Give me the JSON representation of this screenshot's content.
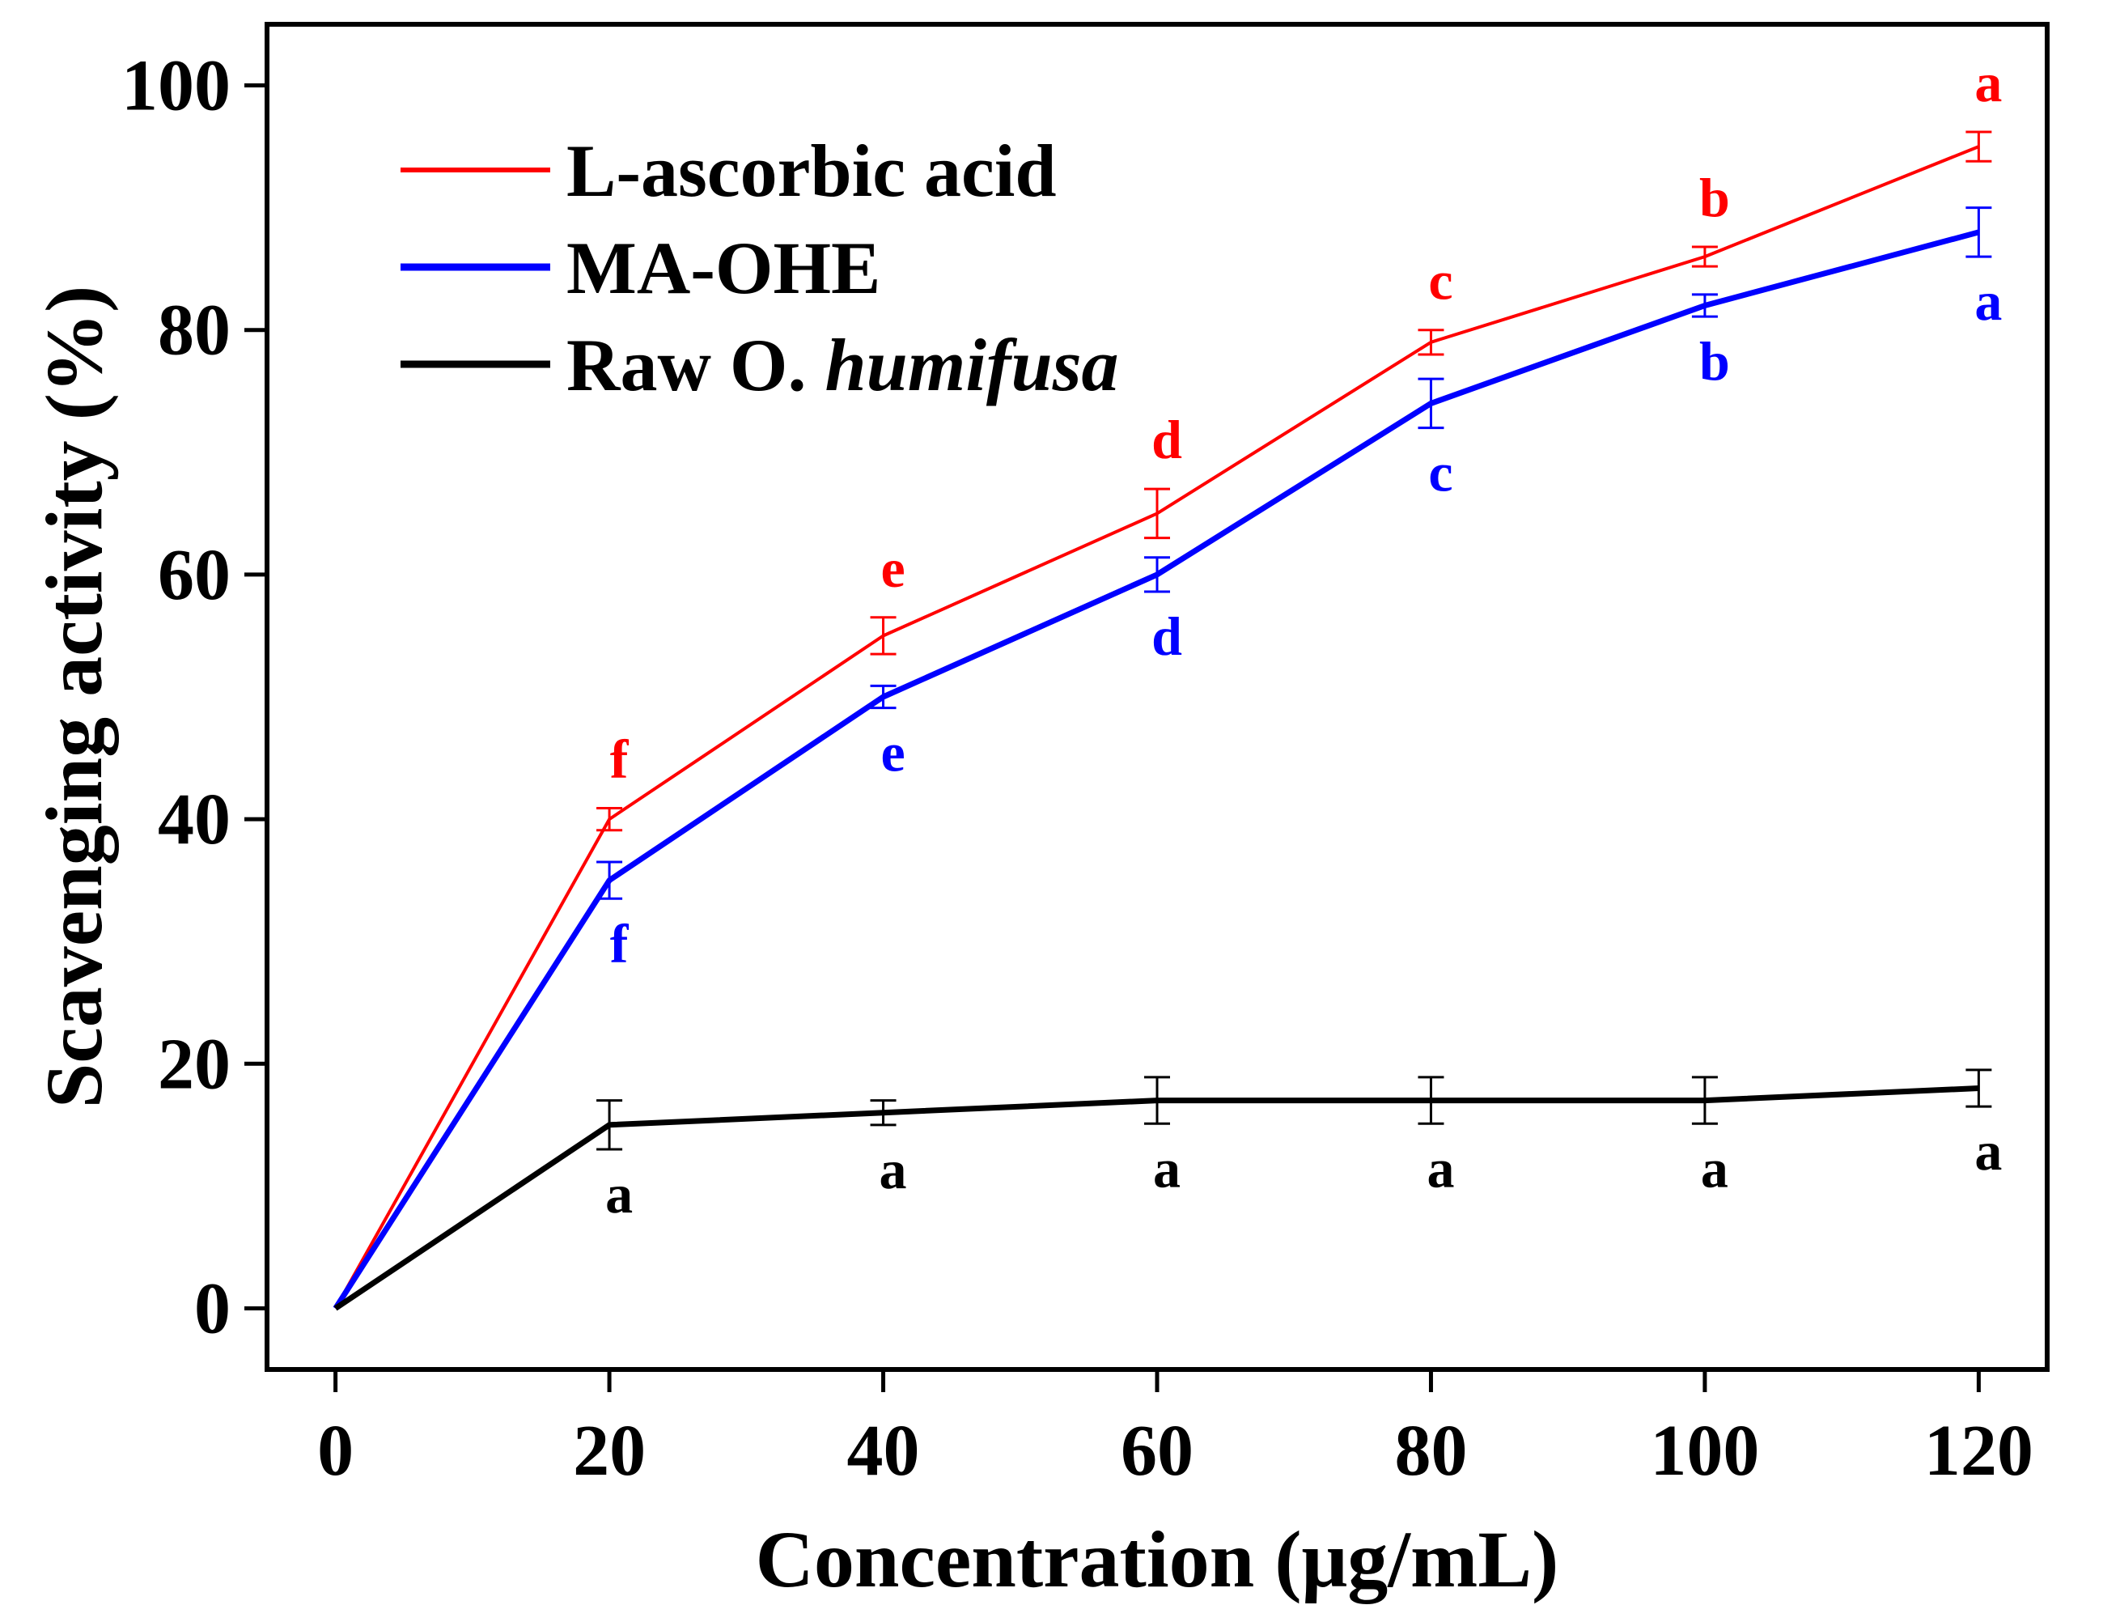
{
  "chart_data": {
    "type": "line",
    "xlabel": "Concentration (μg/mL)",
    "ylabel": "Scavenging activity (%)",
    "x": [
      0,
      20,
      40,
      60,
      80,
      100,
      120
    ],
    "xlim": [
      -5,
      125
    ],
    "ylim": [
      -5,
      105
    ],
    "xticks": [
      0,
      20,
      40,
      60,
      80,
      100,
      120
    ],
    "yticks": [
      0,
      20,
      40,
      60,
      80,
      100
    ],
    "grid": false,
    "legend_position": "top-left",
    "series": [
      {
        "name": "L-ascorbic acid",
        "color": "#ff0000",
        "values": [
          0,
          40,
          55,
          65,
          79,
          86,
          95
        ],
        "errors": [
          0,
          0.9,
          1.5,
          2.0,
          1.0,
          0.8,
          1.2
        ],
        "significance": [
          "",
          "f",
          "e",
          "d",
          "c",
          "b",
          "a"
        ],
        "label_side": "above"
      },
      {
        "name": "MA-OHE",
        "color": "#0000ff",
        "values": [
          0,
          35,
          50,
          60,
          74,
          82,
          88
        ],
        "errors": [
          0,
          1.5,
          0.9,
          1.4,
          2.0,
          0.9,
          2.0
        ],
        "significance": [
          "",
          "f",
          "e",
          "d",
          "c",
          "b",
          "a"
        ],
        "label_side": "below"
      },
      {
        "name": "Raw O. humifusa",
        "name_prefix": "Raw O. ",
        "name_italic": "humifusa",
        "color": "#000000",
        "values": [
          0,
          15,
          16,
          17,
          17,
          17,
          18
        ],
        "errors": [
          0,
          2.0,
          1.0,
          1.9,
          1.9,
          1.9,
          1.5
        ],
        "significance": [
          "",
          "a",
          "a",
          "a",
          "a",
          "a",
          "a"
        ],
        "label_side": "below"
      }
    ]
  }
}
